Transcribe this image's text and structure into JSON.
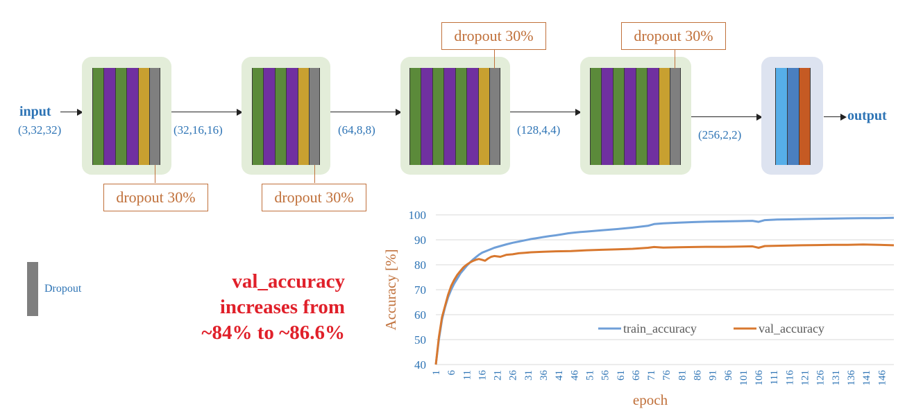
{
  "input": {
    "label": "input",
    "shape": "(3,32,32)"
  },
  "output": {
    "label": "output"
  },
  "dims": [
    "(32,16,16)",
    "(64,8,8)",
    "(128,4,4)",
    "(256,2,2)"
  ],
  "dropout_label": "dropout 30%",
  "legend": {
    "label": "Dropout",
    "color": "#7f7f7f"
  },
  "note": {
    "line1": "val_accuracy",
    "line2": "increases from",
    "line3": "~84% to ~86.6%"
  },
  "colors": {
    "conv_green": "#5b8a3a",
    "conv_purple": "#7030a0",
    "batchnorm_gold": "#c8a030",
    "dropout_gray": "#7f7f7f",
    "dense_light_blue": "#56aee8",
    "dense_blue": "#4a7fc0",
    "dense_orange": "#c55a23",
    "train_line": "#6f9fd8",
    "val_line": "#d8782f"
  },
  "chart_data": {
    "type": "line",
    "xlabel": "epoch",
    "ylabel": "Accuracy [%]",
    "ylim": [
      40,
      100
    ],
    "yticks": [
      40,
      50,
      60,
      70,
      80,
      90,
      100
    ],
    "x_range": [
      1,
      150
    ],
    "xtick_labels": [
      "1",
      "6",
      "11",
      "16",
      "21",
      "26",
      "31",
      "36",
      "41",
      "46",
      "51",
      "56",
      "61",
      "66",
      "71",
      "76",
      "81",
      "86",
      "91",
      "96",
      "101",
      "106",
      "111",
      "116",
      "121",
      "126",
      "131",
      "136",
      "141",
      "146"
    ],
    "legend_position": "center-right",
    "grid": "horizontal",
    "series": [
      {
        "name": "train_accuracy",
        "color": "#6f9fd8",
        "points": [
          [
            1,
            40
          ],
          [
            2,
            50
          ],
          [
            3,
            58
          ],
          [
            4,
            63
          ],
          [
            5,
            67
          ],
          [
            6,
            70
          ],
          [
            7,
            72.5
          ],
          [
            8,
            74.5
          ],
          [
            9,
            76.5
          ],
          [
            10,
            78
          ],
          [
            11,
            79.5
          ],
          [
            12,
            80.8
          ],
          [
            13,
            82
          ],
          [
            14,
            83
          ],
          [
            15,
            84
          ],
          [
            16,
            84.8
          ],
          [
            18,
            85.8
          ],
          [
            20,
            86.8
          ],
          [
            22,
            87.5
          ],
          [
            24,
            88.2
          ],
          [
            26,
            88.8
          ],
          [
            28,
            89.3
          ],
          [
            30,
            89.8
          ],
          [
            32,
            90.3
          ],
          [
            34,
            90.7
          ],
          [
            36,
            91.1
          ],
          [
            38,
            91.5
          ],
          [
            40,
            91.8
          ],
          [
            42,
            92.2
          ],
          [
            44,
            92.6
          ],
          [
            46,
            92.9
          ],
          [
            48,
            93.1
          ],
          [
            50,
            93.3
          ],
          [
            55,
            93.8
          ],
          [
            60,
            94.3
          ],
          [
            65,
            94.9
          ],
          [
            70,
            95.6
          ],
          [
            72,
            96.3
          ],
          [
            75,
            96.6
          ],
          [
            80,
            96.9
          ],
          [
            85,
            97.1
          ],
          [
            90,
            97.3
          ],
          [
            95,
            97.4
          ],
          [
            100,
            97.5
          ],
          [
            104,
            97.6
          ],
          [
            106,
            97.2
          ],
          [
            108,
            97.9
          ],
          [
            112,
            98.1
          ],
          [
            116,
            98.2
          ],
          [
            120,
            98.3
          ],
          [
            125,
            98.4
          ],
          [
            130,
            98.5
          ],
          [
            135,
            98.6
          ],
          [
            140,
            98.7
          ],
          [
            145,
            98.7
          ],
          [
            150,
            98.8
          ]
        ]
      },
      {
        "name": "val_accuracy",
        "color": "#d8782f",
        "points": [
          [
            1,
            40
          ],
          [
            2,
            51
          ],
          [
            3,
            59
          ],
          [
            4,
            63.5
          ],
          [
            5,
            68
          ],
          [
            6,
            71.5
          ],
          [
            7,
            74
          ],
          [
            8,
            76
          ],
          [
            9,
            77.5
          ],
          [
            10,
            79
          ],
          [
            11,
            80
          ],
          [
            12,
            80.8
          ],
          [
            13,
            81.5
          ],
          [
            14,
            82
          ],
          [
            15,
            82.3
          ],
          [
            16,
            82
          ],
          [
            17,
            81.6
          ],
          [
            18,
            82.5
          ],
          [
            19,
            83.2
          ],
          [
            20,
            83.5
          ],
          [
            22,
            83.2
          ],
          [
            24,
            84
          ],
          [
            26,
            84.2
          ],
          [
            28,
            84.6
          ],
          [
            30,
            84.8
          ],
          [
            32,
            85
          ],
          [
            34,
            85.1
          ],
          [
            36,
            85.2
          ],
          [
            40,
            85.4
          ],
          [
            45,
            85.5
          ],
          [
            50,
            85.8
          ],
          [
            55,
            86
          ],
          [
            60,
            86.2
          ],
          [
            65,
            86.4
          ],
          [
            70,
            86.8
          ],
          [
            72,
            87.1
          ],
          [
            75,
            86.9
          ],
          [
            80,
            87
          ],
          [
            85,
            87.1
          ],
          [
            90,
            87.2
          ],
          [
            95,
            87.2
          ],
          [
            100,
            87.3
          ],
          [
            104,
            87.4
          ],
          [
            106,
            86.8
          ],
          [
            108,
            87.5
          ],
          [
            112,
            87.6
          ],
          [
            116,
            87.7
          ],
          [
            120,
            87.8
          ],
          [
            125,
            87.9
          ],
          [
            130,
            88
          ],
          [
            135,
            88
          ],
          [
            140,
            88.1
          ],
          [
            145,
            88
          ],
          [
            150,
            87.8
          ]
        ]
      }
    ]
  }
}
